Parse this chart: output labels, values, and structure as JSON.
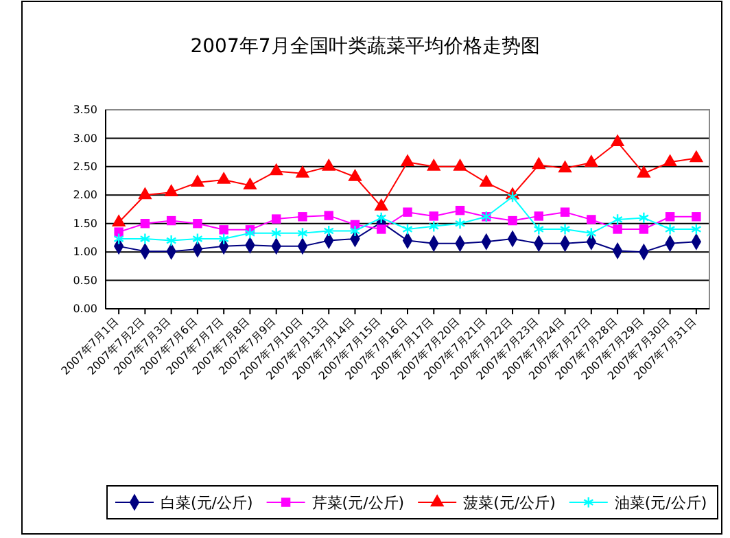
{
  "chart_data": {
    "type": "line",
    "title": "2007年7月全国叶类蔬菜平均价格走势图",
    "categories": [
      "2007年7月1日",
      "2007年7月2日",
      "2007年7月3日",
      "2007年7月6日",
      "2007年7月7日",
      "2007年7月8日",
      "2007年7月9日",
      "2007年7月10日",
      "2007年7月13日",
      "2007年7月14日",
      "2007年7月15日",
      "2007年7月16日",
      "2007年7月17日",
      "2007年7月20日",
      "2007年7月21日",
      "2007年7月22日",
      "2007年7月23日",
      "2007年7月24日",
      "2007年7月27日",
      "2007年7月28日",
      "2007年7月29日",
      "2007年7月30日",
      "2007年7月31日"
    ],
    "series": [
      {
        "name": "白菜(元/公斤)",
        "color": "#000080",
        "marker": "diamond",
        "values": [
          1.1,
          1.01,
          1.01,
          1.05,
          1.1,
          1.12,
          1.1,
          1.1,
          1.2,
          1.23,
          1.52,
          1.2,
          1.15,
          1.15,
          1.18,
          1.23,
          1.15,
          1.15,
          1.18,
          1.02,
          1.0,
          1.15,
          1.18
        ]
      },
      {
        "name": "芹菜(元/公斤)",
        "color": "#ff00ff",
        "marker": "square",
        "values": [
          1.35,
          1.5,
          1.55,
          1.5,
          1.39,
          1.39,
          1.58,
          1.62,
          1.64,
          1.48,
          1.4,
          1.7,
          1.63,
          1.73,
          1.62,
          1.55,
          1.63,
          1.7,
          1.57,
          1.4,
          1.4,
          1.62,
          1.62
        ]
      },
      {
        "name": "菠菜(元/公斤)",
        "color": "#ff0000",
        "marker": "triangle",
        "values": [
          1.52,
          2.0,
          2.05,
          2.22,
          2.27,
          2.17,
          2.42,
          2.38,
          2.5,
          2.32,
          1.8,
          2.58,
          2.5,
          2.5,
          2.22,
          2.0,
          2.53,
          2.47,
          2.57,
          2.93,
          2.38,
          2.58,
          2.65
        ]
      },
      {
        "name": "油菜(元/公斤)",
        "color": "#00ffff",
        "marker": "cross",
        "values": [
          1.23,
          1.23,
          1.2,
          1.23,
          1.23,
          1.33,
          1.33,
          1.33,
          1.37,
          1.37,
          1.6,
          1.4,
          1.45,
          1.5,
          1.62,
          1.97,
          1.4,
          1.4,
          1.33,
          1.57,
          1.6,
          1.4,
          1.4
        ]
      }
    ],
    "ylim": [
      0,
      3.5
    ],
    "yticks": [
      {
        "value": 0,
        "label": "0.00"
      },
      {
        "value": 0.5,
        "label": "0.50"
      },
      {
        "value": 1,
        "label": "1.00"
      },
      {
        "value": 1.5,
        "label": "1.50"
      },
      {
        "value": 2,
        "label": "2.00"
      },
      {
        "value": 2.5,
        "label": "2.50"
      },
      {
        "value": 3,
        "label": "3.00"
      },
      {
        "value": 3.5,
        "label": "3.50"
      }
    ],
    "grid": "y",
    "legend": "bottom"
  }
}
